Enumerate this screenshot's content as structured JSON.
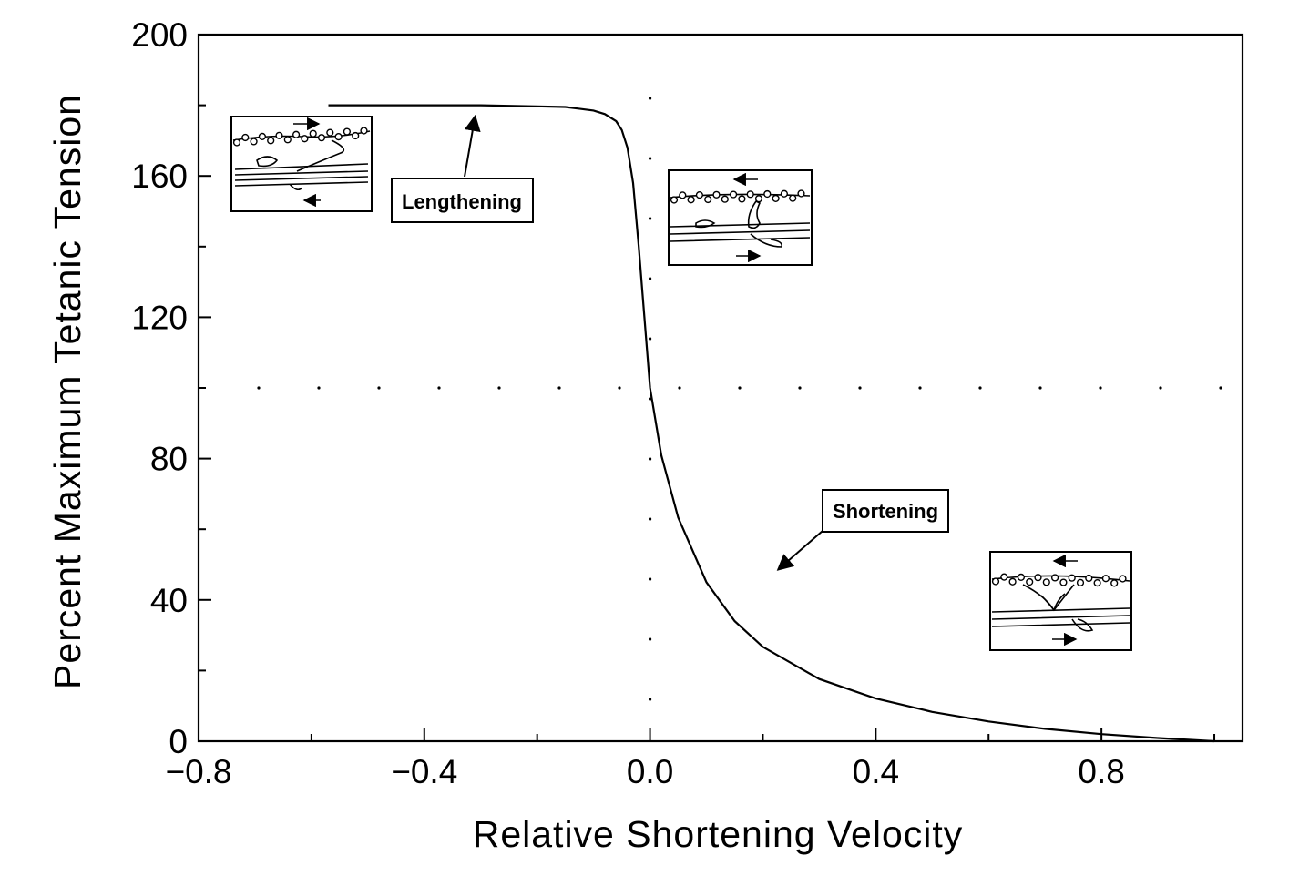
{
  "chart_data": {
    "type": "line",
    "xlabel": "Relative Shortening Velocity",
    "ylabel": "Percent Maximum Tetanic Tension",
    "xlim": [
      -0.8,
      1.05
    ],
    "ylim": [
      0,
      200
    ],
    "x_ticks": [
      -0.8,
      -0.4,
      0.0,
      0.4,
      0.8
    ],
    "x_tick_labels": [
      "−0.8",
      "−0.4",
      "0.0",
      "0.4",
      "0.8"
    ],
    "y_ticks": [
      0,
      40,
      80,
      120,
      160,
      200
    ],
    "y_tick_labels": [
      "0",
      "40",
      "80",
      "120",
      "160",
      "200"
    ],
    "grid": false,
    "reference_lines": [
      {
        "orientation": "horizontal",
        "y": 100,
        "style": "dotted"
      },
      {
        "orientation": "vertical",
        "x": 0.0,
        "style": "dotted"
      }
    ],
    "series": [
      {
        "x": [
          -0.57,
          -0.4,
          -0.3,
          -0.2,
          -0.15,
          -0.1,
          -0.08,
          -0.06,
          -0.05,
          -0.04,
          -0.03,
          -0.02,
          -0.01,
          0.0,
          0.02,
          0.05,
          0.1,
          0.15,
          0.2,
          0.3,
          0.4,
          0.5,
          0.6,
          0.7,
          0.8,
          0.9,
          1.0
        ],
        "y": [
          180,
          180,
          180,
          179.7,
          179.5,
          178.5,
          177.5,
          175.5,
          173,
          168,
          158,
          140,
          120,
          100,
          80.9,
          63.3,
          45.0,
          34.0,
          26.7,
          17.6,
          12.1,
          8.3,
          5.6,
          3.5,
          2.0,
          0.9,
          0
        ]
      }
    ],
    "annotations": [
      {
        "label": "Lengthening",
        "points_to": {
          "x": -0.31,
          "y": 180
        }
      },
      {
        "label": "Shortening",
        "points_to": {
          "x": 0.23,
          "y": 47
        }
      }
    ],
    "insets": [
      {
        "name": "lengthening-crossbridge-illustration"
      },
      {
        "name": "isometric-crossbridge-illustration"
      },
      {
        "name": "shortening-crossbridge-illustration"
      }
    ]
  }
}
